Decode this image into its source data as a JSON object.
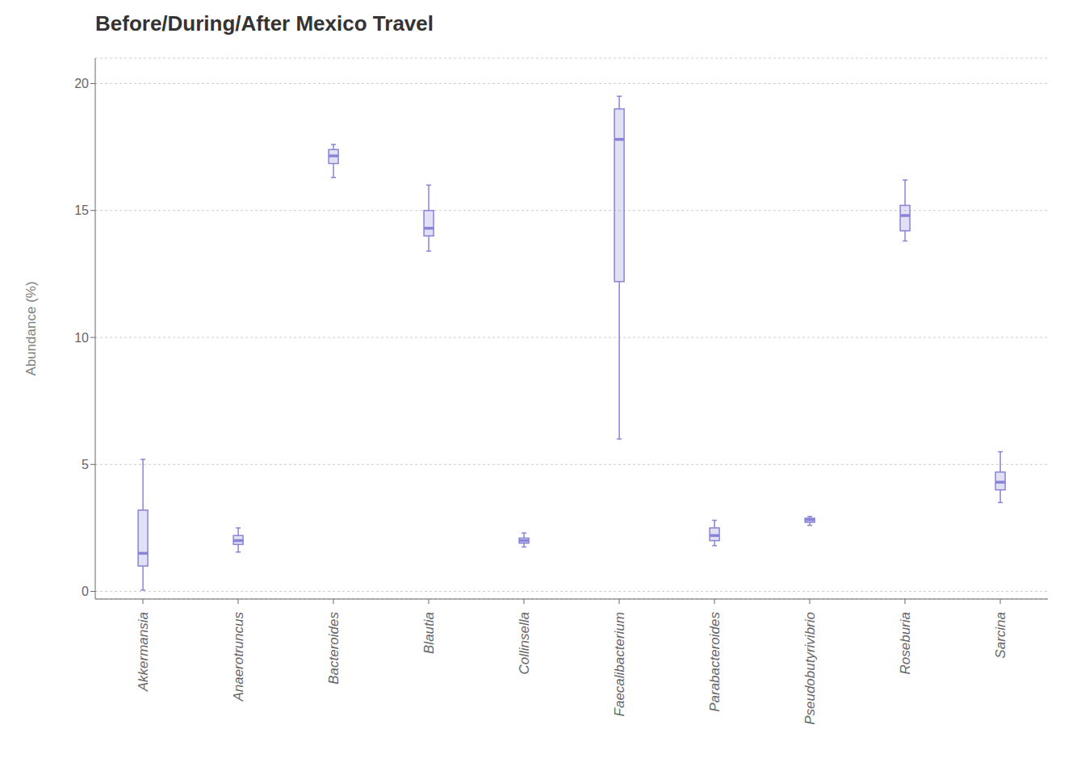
{
  "chart_data": {
    "type": "box",
    "title": "Before/During/After Mexico Travel",
    "ylabel": "Abundance (%)",
    "categories": [
      "Akkermansia",
      "Anaerotruncus",
      "Bacteroides",
      "Blautia",
      "Collinsella",
      "Faecalibacterium",
      "Parabacteroides",
      "Pseudobutyrivibrio",
      "Roseburia",
      "Sarcina"
    ],
    "whislo": [
      0.05,
      1.55,
      16.3,
      13.4,
      1.75,
      6.0,
      1.8,
      2.6,
      13.8,
      3.5
    ],
    "q1": [
      1.0,
      1.85,
      16.85,
      14.0,
      1.9,
      12.2,
      2.0,
      2.72,
      14.2,
      4.0
    ],
    "median": [
      1.5,
      2.0,
      17.15,
      14.3,
      2.0,
      17.8,
      2.2,
      2.82,
      14.8,
      4.3
    ],
    "q3": [
      3.2,
      2.2,
      17.4,
      15.0,
      2.1,
      19.0,
      2.5,
      2.88,
      15.2,
      4.7
    ],
    "whishi": [
      5.2,
      2.5,
      17.6,
      16.0,
      2.3,
      19.5,
      2.8,
      2.95,
      16.2,
      5.5
    ],
    "color": "#8884d8",
    "ylim": [
      -0.3,
      21
    ],
    "yticks": [
      0,
      5,
      10,
      15,
      20
    ],
    "grid": true
  }
}
